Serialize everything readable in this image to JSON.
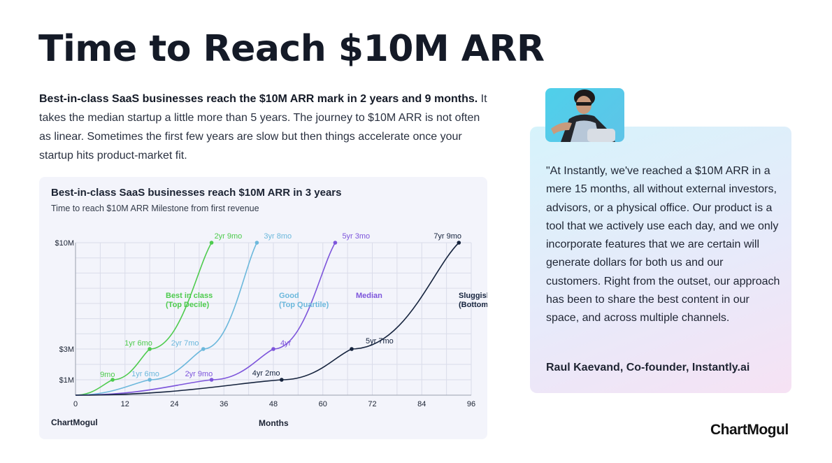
{
  "page": {
    "title": "Time to Reach $10M ARR",
    "intro_lead": "Best-in-class SaaS businesses reach the $10M ARR mark in 2 years and 9 months.",
    "intro_body": " It takes the median startup a little more than 5 years. The journey to $10M ARR is not often as linear. Sometimes the first few years are slow but then things accelerate once your startup hits product-market fit."
  },
  "chart_card": {
    "title": "Best-in-class SaaS businesses reach $10M ARR in 3 years",
    "subtitle": "Time to reach $10M ARR Milestone from first revenue",
    "brand": "ChartMogul"
  },
  "chart_data": {
    "type": "line",
    "title": "Best-in-class SaaS businesses reach $10M ARR in 3 years",
    "subtitle": "Time to reach $10M ARR Milestone from first revenue",
    "xlabel": "Months",
    "ylabel": "",
    "xlim": [
      0,
      96
    ],
    "x_ticks": [
      0,
      12,
      24,
      36,
      48,
      60,
      72,
      84,
      96
    ],
    "x_tick_labels": [
      "0",
      "12",
      "24",
      "36",
      "48",
      "60",
      "72",
      "84",
      "96"
    ],
    "y_ticks": [
      1,
      3,
      10
    ],
    "y_tick_labels": [
      "$1M",
      "$3M",
      "$10M"
    ],
    "grid": true,
    "series": [
      {
        "name": "Best in class",
        "name_line2": "(Top Decile)",
        "color": "#4ecb4e",
        "milestones": [
          {
            "month": 9,
            "arr_m": 1,
            "label": "9mo"
          },
          {
            "month": 18,
            "arr_m": 3,
            "label": "1yr 6mo"
          },
          {
            "month": 33,
            "arr_m": 10,
            "label": "2yr 9mo"
          }
        ]
      },
      {
        "name": "Good",
        "name_line2": "(Top Quartile)",
        "color": "#6cb8dc",
        "milestones": [
          {
            "month": 18,
            "arr_m": 1,
            "label": "1yr 6mo"
          },
          {
            "month": 31,
            "arr_m": 3,
            "label": "2yr 7mo"
          },
          {
            "month": 44,
            "arr_m": 10,
            "label": "3yr 8mo"
          }
        ]
      },
      {
        "name": "Median",
        "name_line2": "",
        "color": "#7d55db",
        "milestones": [
          {
            "month": 33,
            "arr_m": 1,
            "label": "2yr 9mo"
          },
          {
            "month": 48,
            "arr_m": 3,
            "label": "4yr"
          },
          {
            "month": 63,
            "arr_m": 10,
            "label": "5yr 3mo"
          }
        ]
      },
      {
        "name": "Sluggish",
        "name_line2": "(Bottom Quartile)",
        "color": "#15233d",
        "milestones": [
          {
            "month": 50,
            "arr_m": 1,
            "label": "4yr 2mo"
          },
          {
            "month": 67,
            "arr_m": 3,
            "label": "5yr 7mo"
          },
          {
            "month": 93,
            "arr_m": 10,
            "label": "7yr 9mo"
          }
        ]
      }
    ]
  },
  "quote": {
    "text": "\"At Instantly, we've reached a $10M ARR in a mere 15 months, all without external investors, advisors, or a physical office. Our product is a tool that we actively use each day, and we only incorporate features that we are certain will generate dollars for both us and our customers. Right from the outset, our approach has been to share the best content in our space, and across multiple channels.",
    "author": "Raul Kaevand, Co-founder, Instantly.ai"
  },
  "footer": {
    "logo": "ChartMogul"
  }
}
